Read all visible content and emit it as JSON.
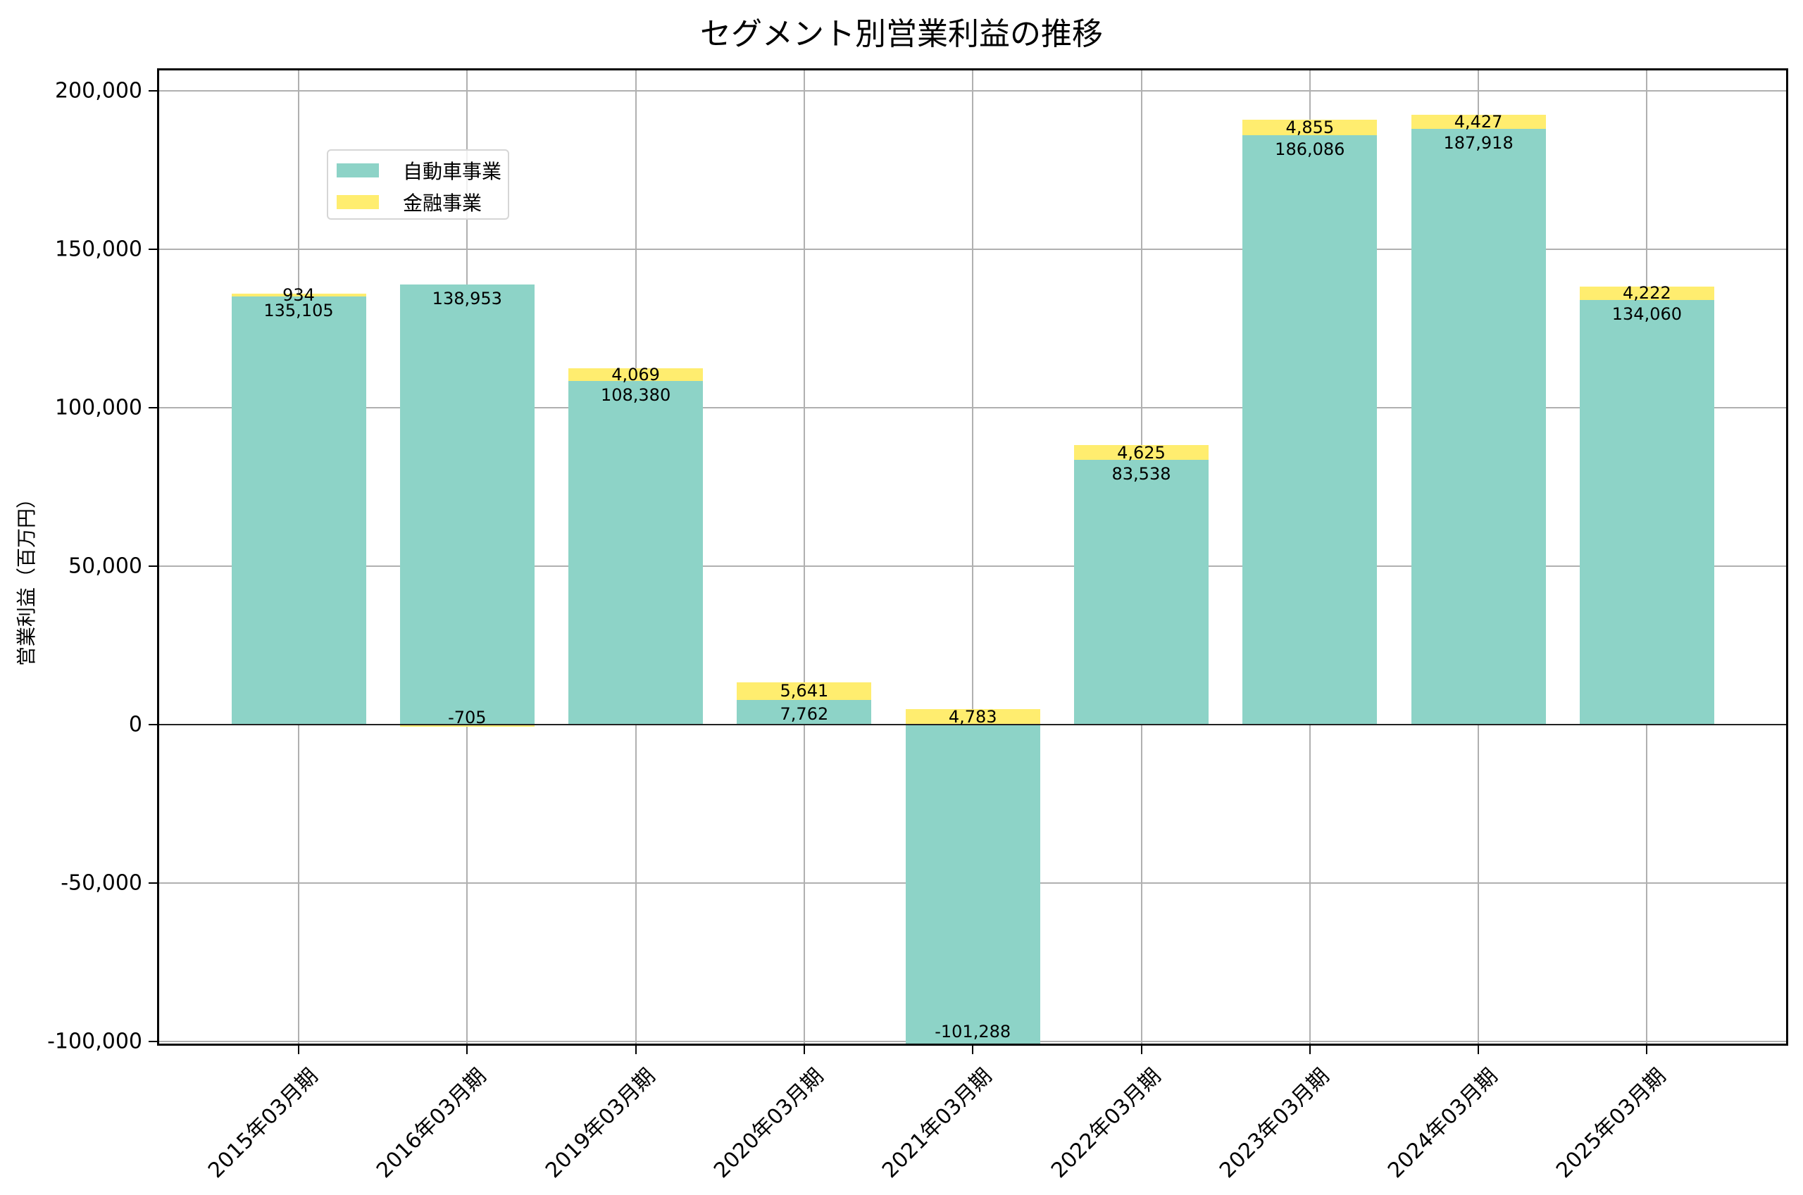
{
  "title": "セグメント別営業利益の推移",
  "colors": {
    "auto": "#8dd3c7",
    "finance": "#ffed6f"
  },
  "legend": [
    {
      "label": "自動車事業",
      "color": "#8dd3c7"
    },
    {
      "label": "金融事業",
      "color": "#ffed6f"
    }
  ],
  "y_ticks": [
    "200,000",
    "150,000",
    "100,000",
    "50,000",
    "0",
    "-50,000",
    "-100,000"
  ],
  "chart_data": {
    "type": "bar",
    "stacked": true,
    "title": "セグメント別営業利益の推移",
    "xlabel": "",
    "ylabel": "営業利益（百万円）",
    "ylim": [
      -101288,
      205000
    ],
    "grid": true,
    "legend_position": "upper left",
    "categories": [
      "2015年03月期",
      "2016年03月期",
      "2019年03月期",
      "2020年03月期",
      "2021年03月期",
      "2022年03月期",
      "2023年03月期",
      "2024年03月期",
      "2025年03月期"
    ],
    "series": [
      {
        "name": "自動車事業",
        "values": [
          135105,
          138953,
          108380,
          7762,
          -101288,
          83538,
          186086,
          187918,
          134060
        ]
      },
      {
        "name": "金融事業",
        "values": [
          934,
          -705,
          4069,
          5641,
          4783,
          4625,
          4855,
          4427,
          4222
        ]
      }
    ],
    "value_labels": {
      "自動車事業": [
        "135,105",
        "138,953",
        "108,380",
        "7,762",
        "-101,288",
        "83,538",
        "186,086",
        "187,918",
        "134,060"
      ],
      "金融事業": [
        "934",
        "-705",
        "4,069",
        "5,641",
        "4,783",
        "4,625",
        "4,855",
        "4,427",
        "4,222"
      ]
    }
  }
}
